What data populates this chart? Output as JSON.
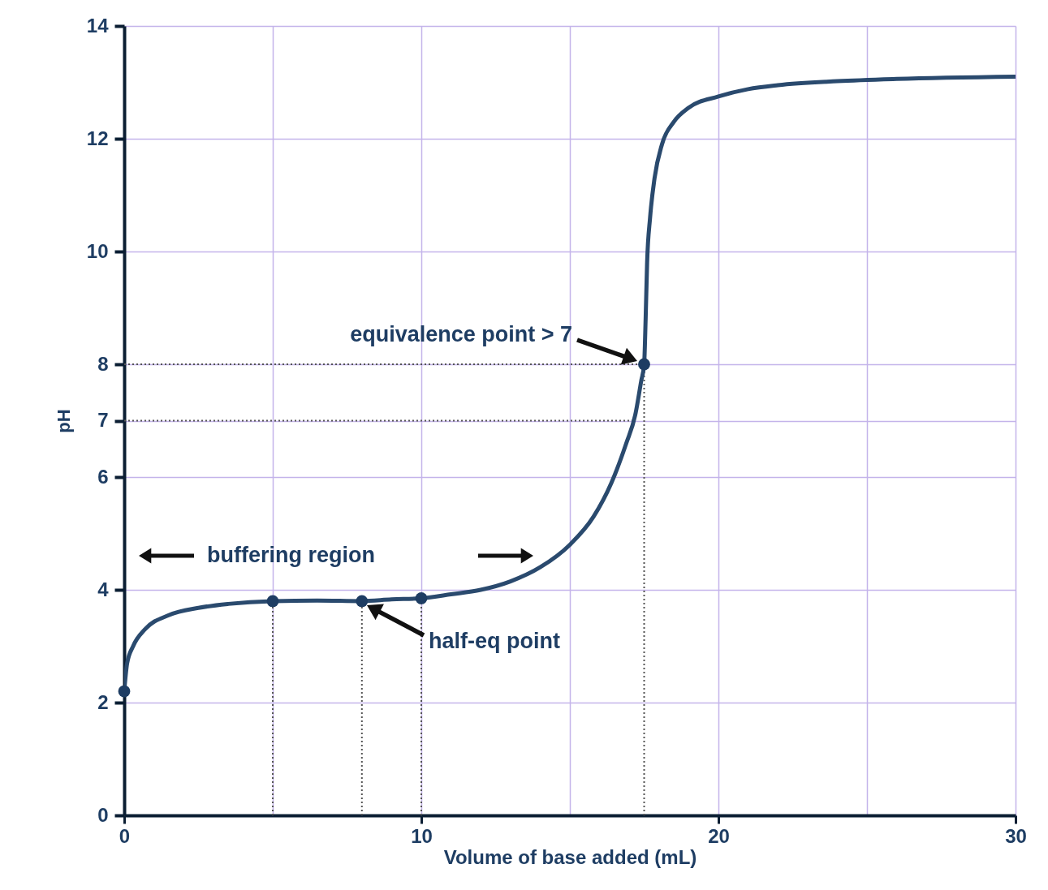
{
  "chart_data": {
    "type": "line",
    "xlabel": "Volume of base added (mL)",
    "ylabel": "pH",
    "xlim": [
      0,
      30
    ],
    "ylim": [
      0,
      14
    ],
    "xticks": [
      0,
      {
        "value": 5,
        "label": null
      },
      10,
      {
        "value": 15,
        "label": null
      },
      20,
      {
        "value": 25,
        "label": null
      },
      30
    ],
    "yticks": [
      0,
      2,
      4,
      6,
      7,
      8,
      10,
      12,
      14
    ],
    "grid": true,
    "series": [
      {
        "color": "#2a4a6e",
        "marker": "none",
        "line_style": "solid",
        "x": [
          0,
          0.1,
          0.3,
          0.7,
          1.5,
          2.5,
          3.5,
          5,
          6.5,
          8,
          9,
          10,
          11,
          12,
          13,
          14,
          15,
          15.8,
          16.4,
          16.9,
          17.2,
          17.4,
          17.5,
          17.55,
          17.6,
          17.7,
          17.85,
          18.1,
          18.5,
          19,
          20,
          21,
          22,
          24,
          26,
          30
        ],
        "values": [
          2.2,
          2.7,
          3.0,
          3.3,
          3.55,
          3.68,
          3.75,
          3.8,
          3.81,
          3.8,
          3.83,
          3.85,
          3.92,
          4.0,
          4.15,
          4.4,
          4.8,
          5.3,
          5.9,
          6.6,
          7.1,
          7.7,
          8.0,
          8.8,
          9.8,
          10.6,
          11.3,
          11.9,
          12.3,
          12.55,
          12.75,
          12.88,
          12.95,
          13.02,
          13.06,
          13.1
        ]
      },
      {
        "type": "scatter",
        "color": "#1e3d63",
        "marker": "circle",
        "x": [
          0,
          5,
          8,
          10,
          17.5
        ],
        "values": [
          2.2,
          3.8,
          3.8,
          3.85,
          8.0
        ]
      }
    ],
    "ref_lines": [
      {
        "axis": "y",
        "value": 7,
        "line_style": "dotted",
        "color": "#555555"
      },
      {
        "axis": "y",
        "value": 8,
        "line_style": "dotted",
        "color": "#555555"
      },
      {
        "axis": "x",
        "value": 5,
        "line_style": "dotted",
        "color": "#555555"
      },
      {
        "axis": "x",
        "value": 8,
        "line_style": "dotted",
        "color": "#555555"
      },
      {
        "axis": "x",
        "value": 10,
        "line_style": "dotted",
        "color": "#555555"
      },
      {
        "axis": "x",
        "value": 17.5,
        "line_style": "dotted",
        "color": "#555555"
      }
    ],
    "annotations": [
      "equivalence point > 7",
      "buffering region",
      "half-eq point"
    ]
  }
}
